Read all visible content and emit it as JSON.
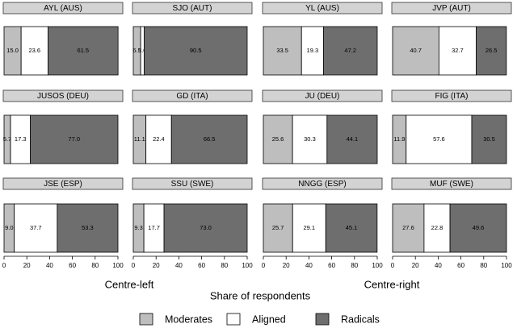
{
  "chart_data": {
    "type": "bar",
    "stacked": true,
    "orientation": "horizontal",
    "xlabel": "Share of respondents",
    "group_labels": [
      "Centre-left",
      "Centre-right"
    ],
    "categories": [
      "AYL (AUS)",
      "SJO (AUT)",
      "YL (AUS)",
      "JVP (AUT)",
      "JUSOS (DEU)",
      "GD (ITA)",
      "JU (DEU)",
      "FIG (ITA)",
      "JSE (ESP)",
      "SSU (SWE)",
      "NNGG (ESP)",
      "MUF (SWE)"
    ],
    "series": [
      {
        "name": "Moderates",
        "color": "#bebebe",
        "values": [
          15.0,
          6.5,
          33.5,
          40.7,
          5.7,
          11.1,
          25.6,
          11.9,
          9.0,
          9.3,
          25.7,
          27.6
        ],
        "value_labels": [
          "15.0",
          "6.5",
          "33.5",
          "40.7",
          "5.7",
          "11.1",
          "25.6",
          "11.9",
          "9.0",
          "9.3",
          "25.7",
          "27.6"
        ]
      },
      {
        "name": "Aligned",
        "color": "#ffffff",
        "values": [
          23.6,
          3.0,
          19.3,
          32.7,
          17.3,
          22.4,
          30.3,
          57.6,
          37.7,
          17.7,
          29.1,
          22.8
        ],
        "value_labels": [
          "23.6",
          "3.0",
          "19.3",
          "32.7",
          "17.3",
          "22.4",
          "30.3",
          "57.6",
          "37.7",
          "17.7",
          "29.1",
          "22.8"
        ]
      },
      {
        "name": "Radicals",
        "color": "#6e6e6e",
        "values": [
          61.5,
          90.5,
          47.2,
          26.5,
          77.0,
          66.5,
          44.1,
          30.5,
          53.3,
          73.0,
          45.1,
          49.6
        ],
        "value_labels": [
          "61.5",
          "90.5",
          "47.2",
          "26.5",
          "77.0",
          "66.5",
          "44.1",
          "30.5",
          "53.3",
          "73.0",
          "45.1",
          "49.6"
        ]
      }
    ],
    "xlim": [
      0,
      100
    ],
    "xticks": [
      0,
      20,
      40,
      60,
      80,
      100
    ],
    "legend": "bottom"
  }
}
